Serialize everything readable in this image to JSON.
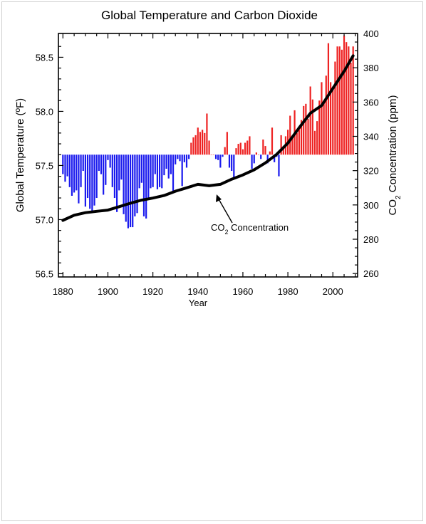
{
  "chart_data": {
    "type": "bar",
    "title": "Global Temperature and Carbon Dioxide",
    "xlabel": "Year",
    "ylabel": "Global Temperature (ºF)",
    "y2label_parts": [
      "CO",
      "2",
      " Concentration (ppm)"
    ],
    "annotation_parts": [
      "CO",
      "2",
      " Concentration"
    ],
    "xlim": [
      1878,
      2011
    ],
    "ylim": [
      56.47,
      58.72
    ],
    "y2lim": [
      258,
      400
    ],
    "baseline": 57.6,
    "x_ticks": [
      "1880",
      "1900",
      "1920",
      "1940",
      "1960",
      "1980",
      "2000"
    ],
    "y_ticks": [
      "56.5",
      "57.0",
      "57.5",
      "58.0",
      "58.5"
    ],
    "y2_ticks": [
      "260",
      "280",
      "300",
      "320",
      "340",
      "360",
      "380",
      "400"
    ],
    "colors": {
      "above": "#ee2222",
      "below": "#1a1aee",
      "line": "#000000"
    },
    "series": [
      {
        "name": "Global Temperature",
        "x": [
          1880,
          1881,
          1882,
          1883,
          1884,
          1885,
          1886,
          1887,
          1888,
          1889,
          1890,
          1891,
          1892,
          1893,
          1894,
          1895,
          1896,
          1897,
          1898,
          1899,
          1900,
          1901,
          1902,
          1903,
          1904,
          1905,
          1906,
          1907,
          1908,
          1909,
          1910,
          1911,
          1912,
          1913,
          1914,
          1915,
          1916,
          1917,
          1918,
          1919,
          1920,
          1921,
          1922,
          1923,
          1924,
          1925,
          1926,
          1927,
          1928,
          1929,
          1930,
          1931,
          1932,
          1933,
          1934,
          1935,
          1936,
          1937,
          1938,
          1939,
          1940,
          1941,
          1942,
          1943,
          1944,
          1945,
          1946,
          1947,
          1948,
          1949,
          1950,
          1951,
          1952,
          1953,
          1954,
          1955,
          1956,
          1957,
          1958,
          1959,
          1960,
          1961,
          1962,
          1963,
          1964,
          1965,
          1966,
          1967,
          1968,
          1969,
          1970,
          1971,
          1972,
          1973,
          1974,
          1975,
          1976,
          1977,
          1978,
          1979,
          1980,
          1981,
          1982,
          1983,
          1984,
          1985,
          1986,
          1987,
          1988,
          1989,
          1990,
          1991,
          1992,
          1993,
          1994,
          1995,
          1996,
          1997,
          1998,
          1999,
          2000,
          2001,
          2002,
          2003,
          2004,
          2005,
          2006,
          2007,
          2008,
          2009
        ],
        "values": [
          57.42,
          57.35,
          57.4,
          57.3,
          57.22,
          57.25,
          57.27,
          57.15,
          57.3,
          57.45,
          57.12,
          57.2,
          57.1,
          57.08,
          57.13,
          57.2,
          57.45,
          57.42,
          57.23,
          57.32,
          57.55,
          57.48,
          57.3,
          57.2,
          57.07,
          57.27,
          57.37,
          57.05,
          56.98,
          56.92,
          56.93,
          56.93,
          57.03,
          57.06,
          57.29,
          57.34,
          57.03,
          57.01,
          57.19,
          57.29,
          57.3,
          57.42,
          57.28,
          57.3,
          57.29,
          57.41,
          57.47,
          57.38,
          57.42,
          57.25,
          57.51,
          57.56,
          57.54,
          57.31,
          57.53,
          57.48,
          57.56,
          57.71,
          57.76,
          57.78,
          57.85,
          57.81,
          57.83,
          57.8,
          57.98,
          57.73,
          57.6,
          57.6,
          57.56,
          57.55,
          57.48,
          57.58,
          57.67,
          57.81,
          57.48,
          57.45,
          57.38,
          57.66,
          57.7,
          57.71,
          57.65,
          57.71,
          57.73,
          57.77,
          57.47,
          57.52,
          57.62,
          57.6,
          57.56,
          57.74,
          57.68,
          57.52,
          57.63,
          57.85,
          57.53,
          57.58,
          57.4,
          57.78,
          57.66,
          57.77,
          57.83,
          57.96,
          57.76,
          58.01,
          57.8,
          57.83,
          57.92,
          58.05,
          58.07,
          57.93,
          58.23,
          58.11,
          57.82,
          57.91,
          58.1,
          58.27,
          58.08,
          58.33,
          58.63,
          58.27,
          58.23,
          58.46,
          58.6,
          58.6,
          58.57,
          58.7,
          58.64,
          58.6,
          58.45,
          58.6
        ]
      },
      {
        "name": "CO2 Concentration",
        "x": [
          1880,
          1885,
          1890,
          1895,
          1900,
          1905,
          1910,
          1915,
          1920,
          1925,
          1930,
          1935,
          1940,
          1945,
          1950,
          1955,
          1960,
          1965,
          1970,
          1975,
          1980,
          1985,
          1990,
          1995,
          2000,
          2005,
          2009
        ],
        "values": [
          291,
          294,
          295.5,
          296.3,
          297,
          299,
          301,
          302.8,
          304,
          305.5,
          308,
          310,
          312,
          311.2,
          312,
          315,
          317.5,
          320.5,
          324.5,
          329.5,
          336,
          345,
          353.5,
          358,
          368,
          378,
          387
        ]
      }
    ]
  }
}
